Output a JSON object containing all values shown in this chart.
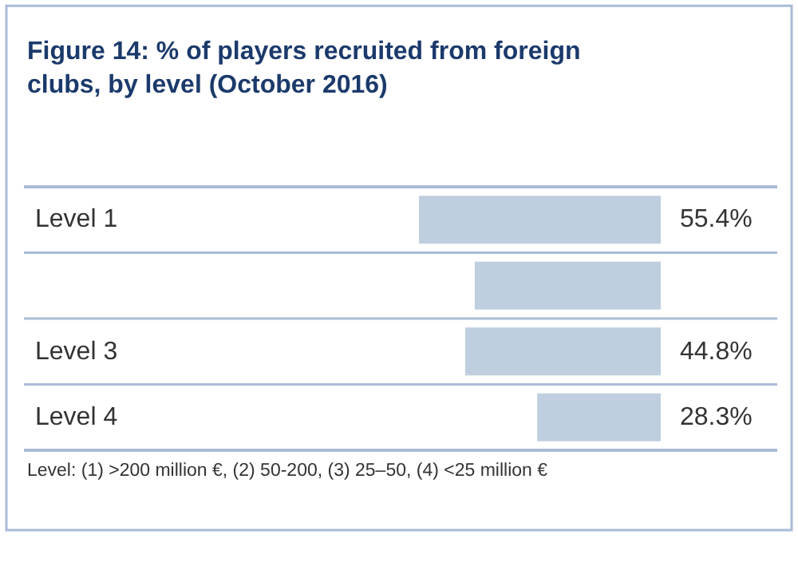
{
  "chart_data": {
    "type": "bar",
    "orientation": "horizontal",
    "title": "Figure 14: % of players recruited from foreign clubs, by level (October 2016)",
    "categories": [
      "Level 1",
      null,
      "Level 3",
      "Level 4"
    ],
    "values": [
      55.4,
      42.6,
      44.8,
      28.3
    ],
    "value_labels": [
      "55.4%",
      null,
      "44.8%",
      "28.3%"
    ],
    "color": "#bfcfe0",
    "annotations": [
      "Level: (1) >200 million €, (2) 50-200, (3) 25–50, (4) <25 million €"
    ]
  }
}
